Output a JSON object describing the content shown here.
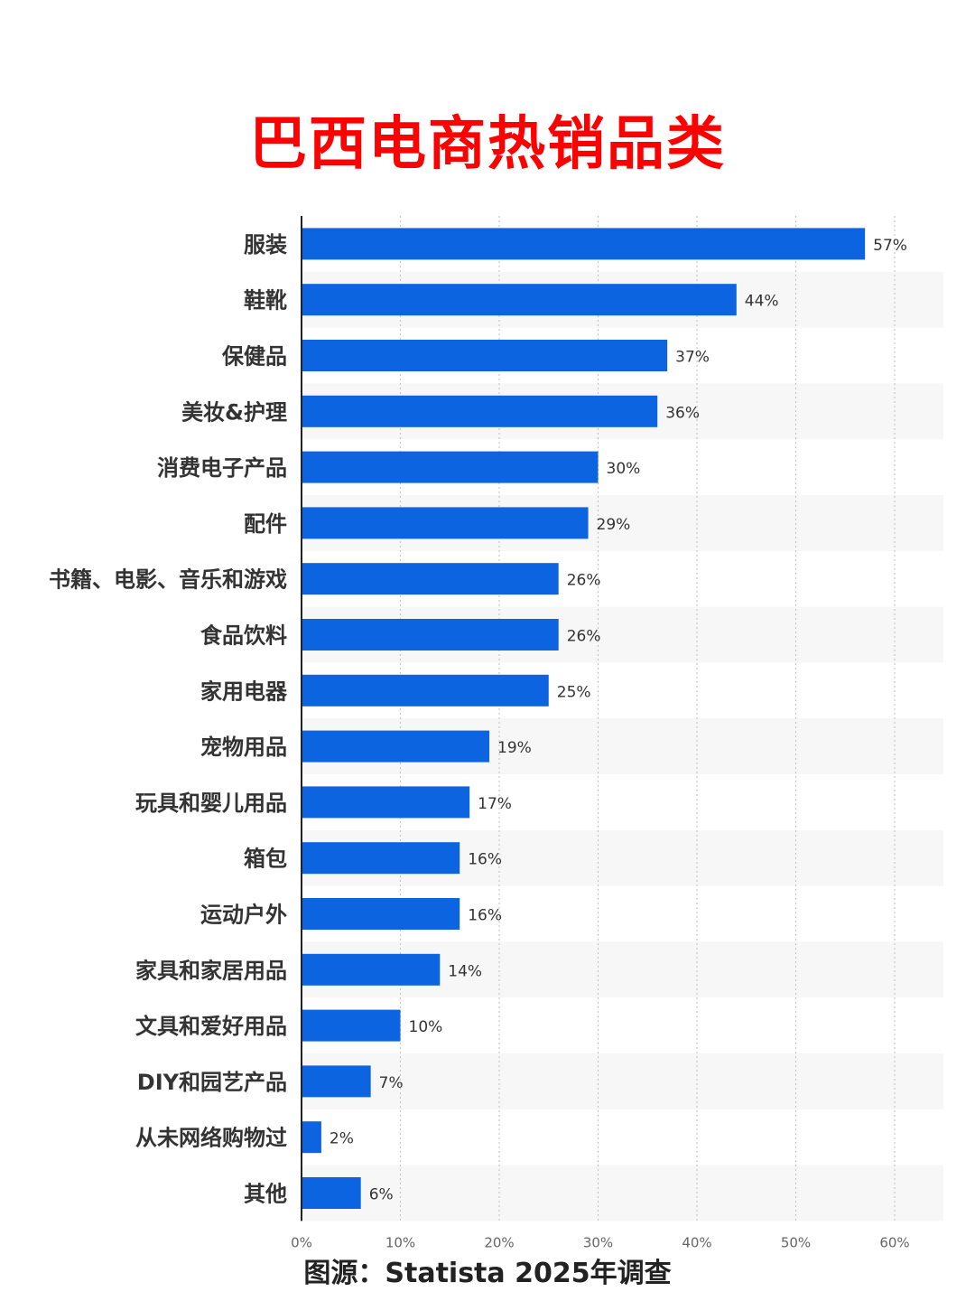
{
  "title": "巴西电商热销品类",
  "source": "图源：Statista 2025年调查",
  "colors": {
    "title": "#ff0000",
    "bar": "#0d64e0",
    "band": "#f7f7f7",
    "grid": "#c8c8c8",
    "axis": "#222222"
  },
  "chart_data": {
    "type": "bar",
    "orientation": "horizontal",
    "categories": [
      "服装",
      "鞋靴",
      "保健品",
      "美妆&护理",
      "消费电子产品",
      "配件",
      "书籍、电影、音乐和游戏",
      "食品饮料",
      "家用电器",
      "宠物用品",
      "玩具和婴儿用品",
      "箱包",
      "运动户外",
      "家具和家居用品",
      "文具和爱好用品",
      "DIY和园艺产品",
      "从未网络购物过",
      "其他"
    ],
    "values": [
      57,
      44,
      37,
      36,
      30,
      29,
      26,
      26,
      25,
      19,
      17,
      16,
      16,
      14,
      10,
      7,
      2,
      6
    ],
    "value_labels": [
      "57%",
      "44%",
      "37%",
      "36%",
      "30%",
      "29%",
      "26%",
      "26%",
      "25%",
      "19%",
      "17%",
      "16%",
      "16%",
      "14%",
      "10%",
      "7%",
      "2%",
      "6%"
    ],
    "xlim": [
      0,
      60
    ],
    "xticks": [
      0,
      10,
      20,
      30,
      40,
      50,
      60
    ],
    "xtick_labels": [
      "0%",
      "10%",
      "20%",
      "30%",
      "40%",
      "50%",
      "60%"
    ],
    "grid": "vertical dotted",
    "legend": "none"
  }
}
